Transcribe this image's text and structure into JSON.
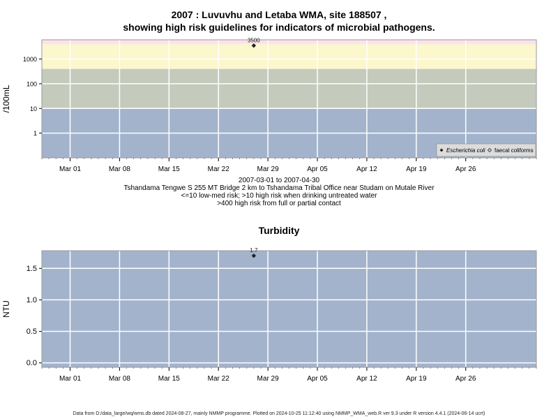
{
  "title_line1": "2007 : Luvuvhu and Letaba WMA, site 188507 ,",
  "title_line2": "showing high risk guidelines for indicators of microbial pathogens.",
  "date_range": "2007-03-01 to 2007-04-30",
  "site_description": "Tshandama Tengwe S 255 MT Bridge 2 km to Tshandama Tribal Office near Studam on Mutale River",
  "guideline_1": "<=10 low-med risk; >10 high risk when drinking untreated water",
  "guideline_2": ">400 high risk from full or partial contact",
  "footer": "Data from D:/data_large/wq/wms.db dated 2024-08-27, mainly NMMP programme. Plotted on 2024-10-25 11:12:40 using NMMP_WMA_web.R ver 9.3 under R version 4.4.1 (2024-06-14 ucrt)",
  "chart_data": [
    {
      "type": "scatter",
      "title": "",
      "ylabel": "/100mL",
      "y_scale": "log",
      "xlim": [
        "2007-02-25",
        "2007-05-06"
      ],
      "x_ticks": [
        "Mar 01",
        "Mar 08",
        "Mar 15",
        "Mar 22",
        "Mar 29",
        "Apr 05",
        "Apr 12",
        "Apr 19",
        "Apr 26"
      ],
      "x_tick_dates": [
        "2007-03-01",
        "2007-03-08",
        "2007-03-15",
        "2007-03-22",
        "2007-03-29",
        "2007-04-05",
        "2007-04-12",
        "2007-04-19",
        "2007-04-26"
      ],
      "y_ticks": [
        1,
        10,
        100,
        1000
      ],
      "y_tick_labels": [
        "1",
        "10",
        "100",
        "1000"
      ],
      "grid": true,
      "risk_bands": [
        {
          "from": 0.1,
          "to": 10,
          "color": "#a3b3cc"
        },
        {
          "from": 10,
          "to": 400,
          "color": "#c4cbbd"
        },
        {
          "from": 400,
          "to": 4000,
          "color": "#fcf7cc"
        },
        {
          "from": 4000,
          "to": 6000,
          "color": "#fbe2ea"
        }
      ],
      "series": [
        {
          "name": "Escherichia coli",
          "marker": "filled-diamond",
          "points": [
            {
              "x": "2007-03-27",
              "y": 3500,
              "label": "3500"
            }
          ]
        },
        {
          "name": "faecal coliforms",
          "marker": "open-diamond",
          "points": []
        }
      ],
      "legend": "bottom-right",
      "colors": {
        "marker": "#222222",
        "grid": "#ffffff"
      }
    },
    {
      "type": "scatter",
      "title": "Turbidity",
      "ylabel": "NTU",
      "xlim": [
        "2007-02-25",
        "2007-05-06"
      ],
      "x_ticks": [
        "Mar 01",
        "Mar 08",
        "Mar 15",
        "Mar 22",
        "Mar 29",
        "Apr 05",
        "Apr 12",
        "Apr 19",
        "Apr 26"
      ],
      "x_tick_dates": [
        "2007-03-01",
        "2007-03-08",
        "2007-03-15",
        "2007-03-22",
        "2007-03-29",
        "2007-04-05",
        "2007-04-12",
        "2007-04-19",
        "2007-04-26"
      ],
      "ylim": [
        -0.07,
        1.78
      ],
      "y_ticks": [
        0.0,
        0.5,
        1.0,
        1.5
      ],
      "y_tick_labels": [
        "0.0",
        "0.5",
        "1.0",
        "1.5"
      ],
      "grid": true,
      "series": [
        {
          "name": "",
          "marker": "filled-diamond",
          "points": [
            {
              "x": "2007-03-27",
              "y": 1.7,
              "label": "1.7"
            }
          ]
        }
      ],
      "colors": {
        "background": "#a3b3cc",
        "marker": "#222222",
        "grid": "#ffffff"
      }
    }
  ]
}
